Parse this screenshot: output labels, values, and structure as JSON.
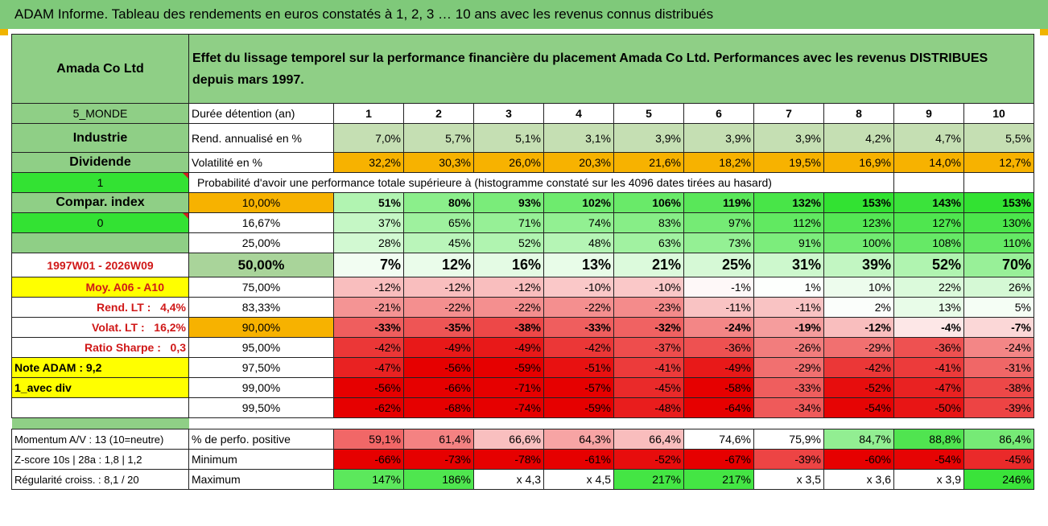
{
  "title": "ADAM Informe. Tableau des rendements en euros constatés à 1, 2, 3 … 10 ans avec les revenus connus distribués",
  "header": {
    "company": "Amada Co Ltd",
    "description": "Effet du lissage temporel sur la performance financière du placement Amada Co Ltd. Performances avec les revenus DISTRIBUES depuis mars 1997."
  },
  "left_labels": {
    "zone": "5_MONDE",
    "sector": "Industrie",
    "dividend": "Dividende",
    "flag1": "1",
    "compar_index": "Compar. index",
    "flag2": "0",
    "period": "1997W01 - 2026W09",
    "moy": "Moy. A06 - A10",
    "rend_lt": "Rend. LT :",
    "rend_lt_val": "4,4%",
    "volat_lt": "Volat. LT :",
    "volat_lt_val": "16,2%",
    "sharpe": "Ratio Sharpe :",
    "sharpe_val": "0,3",
    "note": "Note ADAM : 9,2",
    "div_mode": "1_avec div",
    "momentum": "Momentum A/V : 13 (10=neutre)",
    "zscore": "Z-score 10s | 28a : 1,8 | 1,2",
    "regularite": "Régularité croiss. : 8,1 / 20"
  },
  "row_labels": {
    "duration": "Durée détention (an)",
    "rend": "Rend. annualisé en %",
    "vol": "Volatilité en %",
    "prob": "Probabilité d'avoir une performance totale supérieure à (histogramme constaté sur les 4096 dates tirées au hasard)",
    "pos": "% de perfo. positive",
    "min": "Minimum",
    "max": "Maximum"
  },
  "years": [
    "1",
    "2",
    "3",
    "4",
    "5",
    "6",
    "7",
    "8",
    "9",
    "10"
  ],
  "rend": [
    "7,0%",
    "5,7%",
    "5,1%",
    "3,1%",
    "3,9%",
    "3,9%",
    "3,9%",
    "4,2%",
    "4,7%",
    "5,5%"
  ],
  "vol": [
    "32,2%",
    "30,3%",
    "26,0%",
    "20,3%",
    "21,6%",
    "18,2%",
    "19,5%",
    "16,9%",
    "14,0%",
    "12,7%"
  ],
  "perc": [
    {
      "label": "10,00%",
      "vals": [
        "51%",
        "80%",
        "93%",
        "102%",
        "106%",
        "119%",
        "132%",
        "153%",
        "143%",
        "153%"
      ]
    },
    {
      "label": "16,67%",
      "vals": [
        "37%",
        "65%",
        "71%",
        "74%",
        "83%",
        "97%",
        "112%",
        "123%",
        "127%",
        "130%"
      ]
    },
    {
      "label": "25,00%",
      "vals": [
        "28%",
        "45%",
        "52%",
        "48%",
        "63%",
        "73%",
        "91%",
        "100%",
        "108%",
        "110%"
      ]
    },
    {
      "label": "50,00%",
      "vals": [
        "7%",
        "12%",
        "16%",
        "13%",
        "21%",
        "25%",
        "31%",
        "39%",
        "52%",
        "70%"
      ]
    },
    {
      "label": "75,00%",
      "vals": [
        "-12%",
        "-12%",
        "-12%",
        "-10%",
        "-10%",
        "-1%",
        "1%",
        "10%",
        "22%",
        "26%"
      ]
    },
    {
      "label": "83,33%",
      "vals": [
        "-21%",
        "-22%",
        "-22%",
        "-22%",
        "-23%",
        "-11%",
        "-11%",
        "2%",
        "13%",
        "5%"
      ]
    },
    {
      "label": "90,00%",
      "vals": [
        "-33%",
        "-35%",
        "-38%",
        "-33%",
        "-32%",
        "-24%",
        "-19%",
        "-12%",
        "-4%",
        "-7%"
      ]
    },
    {
      "label": "95,00%",
      "vals": [
        "-42%",
        "-49%",
        "-49%",
        "-42%",
        "-37%",
        "-36%",
        "-26%",
        "-29%",
        "-36%",
        "-24%"
      ]
    },
    {
      "label": "97,50%",
      "vals": [
        "-47%",
        "-56%",
        "-59%",
        "-51%",
        "-41%",
        "-49%",
        "-29%",
        "-42%",
        "-41%",
        "-31%"
      ]
    },
    {
      "label": "99,00%",
      "vals": [
        "-56%",
        "-66%",
        "-71%",
        "-57%",
        "-45%",
        "-58%",
        "-33%",
        "-52%",
        "-47%",
        "-38%"
      ]
    },
    {
      "label": "99,50%",
      "vals": [
        "-62%",
        "-68%",
        "-74%",
        "-59%",
        "-48%",
        "-64%",
        "-34%",
        "-54%",
        "-50%",
        "-39%"
      ]
    }
  ],
  "pos": [
    "59,1%",
    "61,4%",
    "66,6%",
    "64,3%",
    "66,4%",
    "74,6%",
    "75,9%",
    "84,7%",
    "88,8%",
    "86,4%"
  ],
  "min": [
    "-66%",
    "-73%",
    "-78%",
    "-61%",
    "-52%",
    "-67%",
    "-39%",
    "-60%",
    "-54%",
    "-45%"
  ],
  "max": [
    "147%",
    "186%",
    "x 4,3",
    "x 4,5",
    "217%",
    "217%",
    "x 3,5",
    "x 3,6",
    "x 3,9",
    "246%"
  ],
  "colors": {
    "header_green": "#8fcf86",
    "orange": "#f7b200",
    "lime": "#33e233",
    "yellow": "#ffff00",
    "red_text": "#d01818"
  }
}
